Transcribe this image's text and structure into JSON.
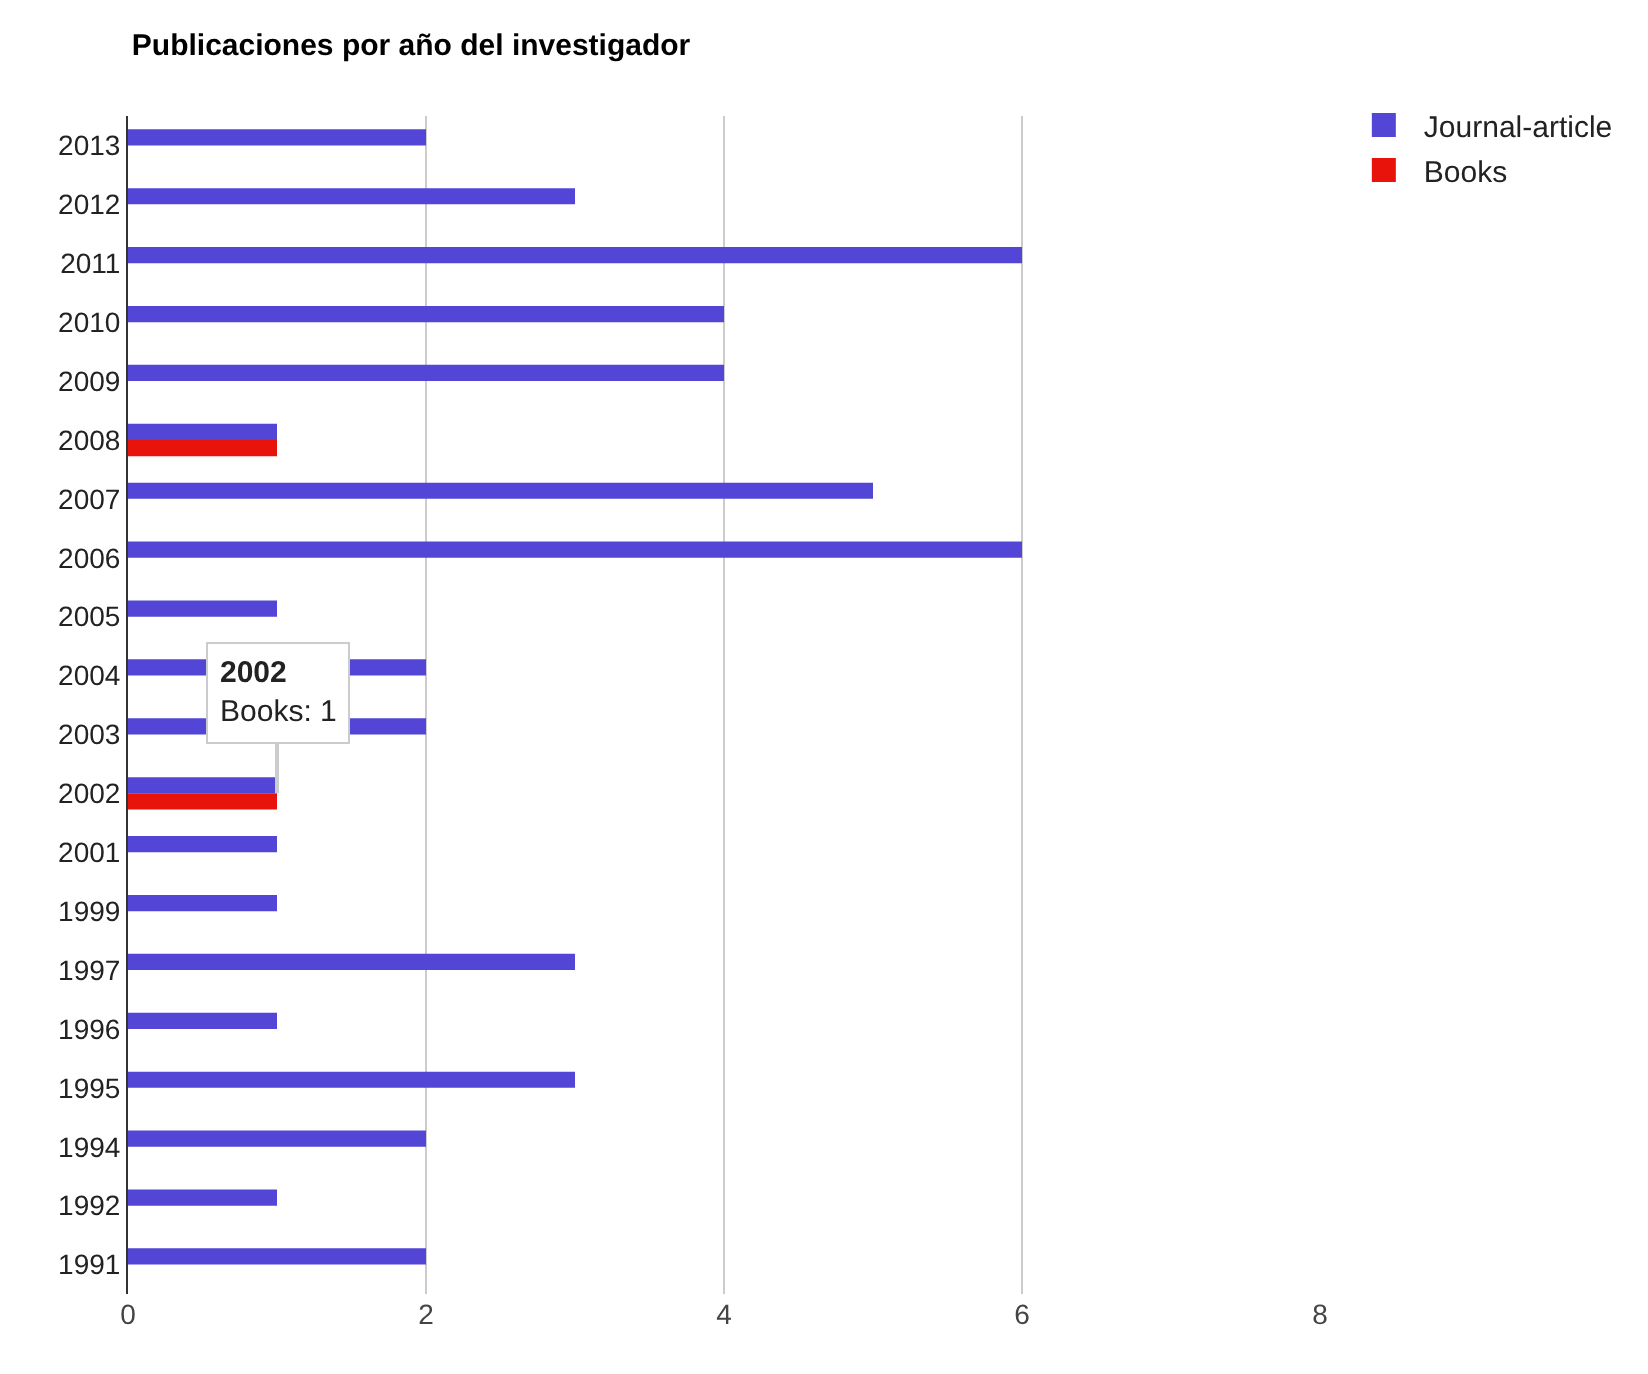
{
  "chart_data": {
    "type": "bar",
    "orientation": "horizontal",
    "title": "Publicaciones por año del investigador",
    "categories": [
      "2013",
      "2012",
      "2011",
      "2010",
      "2009",
      "2008",
      "2007",
      "2006",
      "2005",
      "2004",
      "2003",
      "2002",
      "2001",
      "1999",
      "1997",
      "1996",
      "1995",
      "1994",
      "1992",
      "1991"
    ],
    "series": [
      {
        "name": "Journal-article",
        "color": "#5346d6",
        "values": [
          2,
          3,
          6,
          4,
          4,
          1,
          5,
          6,
          1,
          2,
          2,
          1,
          1,
          1,
          3,
          1,
          3,
          2,
          1,
          2
        ]
      },
      {
        "name": "Books",
        "color": "#e8140c",
        "values": [
          null,
          null,
          null,
          null,
          null,
          1,
          null,
          null,
          null,
          null,
          null,
          1,
          null,
          null,
          null,
          null,
          null,
          null,
          null,
          null
        ]
      }
    ],
    "xlim": [
      0,
      8
    ],
    "xticks": [
      0,
      2,
      4,
      6,
      8
    ],
    "grid": "x",
    "legend": "top right",
    "annotations": [
      {
        "text": "2002\nBooks: 1",
        "x": 1,
        "y": "2002"
      }
    ]
  }
}
